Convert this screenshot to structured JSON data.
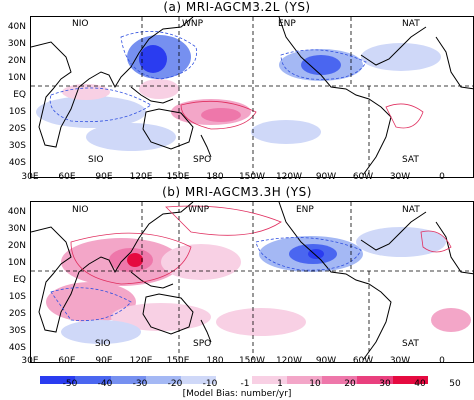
{
  "panels": [
    {
      "title": "(a)  MRI-AGCM3.2L  (YS)"
    },
    {
      "title": "(b)  MRI-AGCM3.3H  (YS)"
    }
  ],
  "lat_labels": [
    "40N",
    "30N",
    "20N",
    "10N",
    "EQ",
    "10S",
    "20S",
    "30S",
    "40S"
  ],
  "lon_labels": [
    "30E",
    "60E",
    "90E",
    "120E",
    "150E",
    "180",
    "150W",
    "120W",
    "90W",
    "60W",
    "30W",
    "0"
  ],
  "regions_top": [
    "NIO",
    "WNP",
    "ENP",
    "NAT"
  ],
  "regions_bottom": [
    "SIO",
    "SPO",
    "SAT"
  ],
  "colorbar": {
    "ticks": [
      "-50",
      "-40",
      "-30",
      "-20",
      "-10",
      "-1",
      "1",
      "10",
      "20",
      "30",
      "40",
      "50"
    ],
    "colors": [
      "#2a3cf0",
      "#4a66f0",
      "#7690f0",
      "#a4b8f4",
      "#cfd8f8",
      "#ffffff",
      "#f8d0e4",
      "#f3a6c8",
      "#ee77aa",
      "#e9407e",
      "#e50a40"
    ],
    "caption": "[Model Bias: number/yr]"
  }
}
